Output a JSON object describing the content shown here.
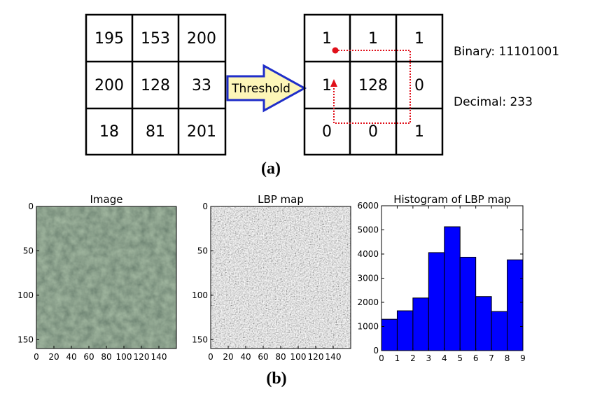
{
  "panel_a": {
    "input_grid": [
      [
        "195",
        "153",
        "200"
      ],
      [
        "200",
        "128",
        "33"
      ],
      [
        "18",
        "81",
        "201"
      ]
    ],
    "arrow_label": "Threshold",
    "output_grid": [
      [
        "1",
        "1",
        "1"
      ],
      [
        "1",
        "128",
        "0"
      ],
      [
        "0",
        "0",
        "1"
      ]
    ],
    "binary_label": "Binary: 11101001",
    "decimal_label": "Decimal: 233",
    "caption": "(a)",
    "colors": {
      "arrow_fill": "#fdf6b8",
      "arrow_stroke": "#1f2ec9",
      "path": "#e0101a"
    }
  },
  "panel_b": {
    "caption": "(b)",
    "image_plot": {
      "title": "Image",
      "x_ticks": [
        "0",
        "20",
        "40",
        "60",
        "80",
        "100",
        "120",
        "140"
      ],
      "y_ticks": [
        "0",
        "50",
        "100",
        "150"
      ]
    },
    "lbp_plot": {
      "title": "LBP map",
      "x_ticks": [
        "0",
        "20",
        "40",
        "60",
        "80",
        "100",
        "120",
        "140"
      ],
      "y_ticks": [
        "0",
        "50",
        "100",
        "150"
      ]
    }
  },
  "chart_data": {
    "type": "bar",
    "title": "Histogram of LBP map",
    "x": [
      0,
      1,
      2,
      3,
      4,
      5,
      6,
      7,
      8
    ],
    "values": [
      1300,
      1650,
      2180,
      4060,
      5130,
      3870,
      2240,
      1620,
      3760
    ],
    "xlim": [
      0,
      9
    ],
    "ylim": [
      0,
      6000
    ],
    "x_ticks": [
      "0",
      "1",
      "2",
      "3",
      "4",
      "5",
      "6",
      "7",
      "8",
      "9"
    ],
    "y_ticks": [
      "0",
      "1000",
      "2000",
      "3000",
      "4000",
      "5000",
      "6000"
    ],
    "bar_color": "#0000ff"
  }
}
